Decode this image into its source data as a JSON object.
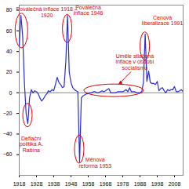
{
  "chart_data": {
    "type": "line",
    "color": "#2b2bd6",
    "x": [
      1918,
      1919,
      1920,
      1921,
      1922,
      1923,
      1924,
      1925,
      1926,
      1927,
      1928,
      1929,
      1930,
      1931,
      1932,
      1933,
      1934,
      1935,
      1936,
      1937,
      1938,
      1939,
      1940,
      1941,
      1942,
      1943,
      1944,
      1945,
      1946,
      1947,
      1948,
      1949,
      1950,
      1951,
      1952,
      1953,
      1954,
      1955,
      1956,
      1957,
      1958,
      1959,
      1960,
      1961,
      1962,
      1963,
      1964,
      1965,
      1966,
      1967,
      1968,
      1969,
      1970,
      1971,
      1972,
      1973,
      1974,
      1975,
      1976,
      1977,
      1978,
      1979,
      1980,
      1981,
      1982,
      1983,
      1984,
      1985,
      1986,
      1987,
      1988,
      1989,
      1990,
      1991,
      1992,
      1993,
      1994,
      1995,
      1996,
      1997,
      1998,
      1999,
      2000,
      2001,
      2002,
      2003,
      2004,
      2005,
      2006,
      2007,
      2008,
      2009,
      2010,
      2011,
      2012,
      2013
    ],
    "values": [
      45,
      75,
      55,
      10,
      -20,
      -30,
      -5,
      3,
      0,
      2,
      1,
      -1,
      -5,
      -8,
      -6,
      -3,
      -1,
      2,
      1,
      3,
      2,
      8,
      15,
      10,
      8,
      5,
      6,
      30,
      75,
      20,
      10,
      5,
      3,
      2,
      1,
      -67,
      -5,
      -3,
      -2,
      -1,
      -1,
      0,
      0,
      1,
      1,
      0,
      0,
      1,
      2,
      1,
      2,
      3,
      4,
      0,
      0,
      0,
      0,
      1,
      1,
      1,
      1,
      2,
      3,
      1,
      5,
      1,
      1,
      1,
      0,
      0,
      0,
      1,
      10,
      57,
      11,
      21,
      10,
      9,
      9,
      8,
      11,
      2,
      4,
      5,
      2,
      0,
      3,
      2,
      3,
      3,
      6,
      1,
      1,
      2,
      3,
      1
    ],
    "xlim": [
      1918,
      2013
    ],
    "xticks": [
      1918,
      1928,
      1938,
      1948,
      1958,
      1968,
      1978,
      1988,
      1998,
      2008
    ],
    "ylim": [
      -80,
      85
    ],
    "yticks": [
      -60,
      -40,
      -20,
      0,
      20,
      40,
      60,
      80
    ],
    "grid": false,
    "annotations": [
      {
        "text": "Poválečná inflace 1918 –\n1920",
        "x": 1934,
        "y": 78,
        "color": "#e00000"
      },
      {
        "text": "Deflační\npolitika A.\nRašína",
        "x": 1925,
        "y": -50,
        "color": "#e00000"
      },
      {
        "text": "Poválečná\ninflace 1946",
        "x": 1958,
        "y": 80,
        "color": "#e00000"
      },
      {
        "text": "Měnová\nreforma 1953",
        "x": 1962,
        "y": -68,
        "color": "#e00000"
      },
      {
        "text": "Uměle stlačená\ninflace v období\nsocialismu",
        "x": 1985,
        "y": 30,
        "color": "#e00000"
      },
      {
        "text": "Cenová\nliberalizace 1991",
        "x": 2001,
        "y": 70,
        "color": "#e00000"
      }
    ]
  }
}
